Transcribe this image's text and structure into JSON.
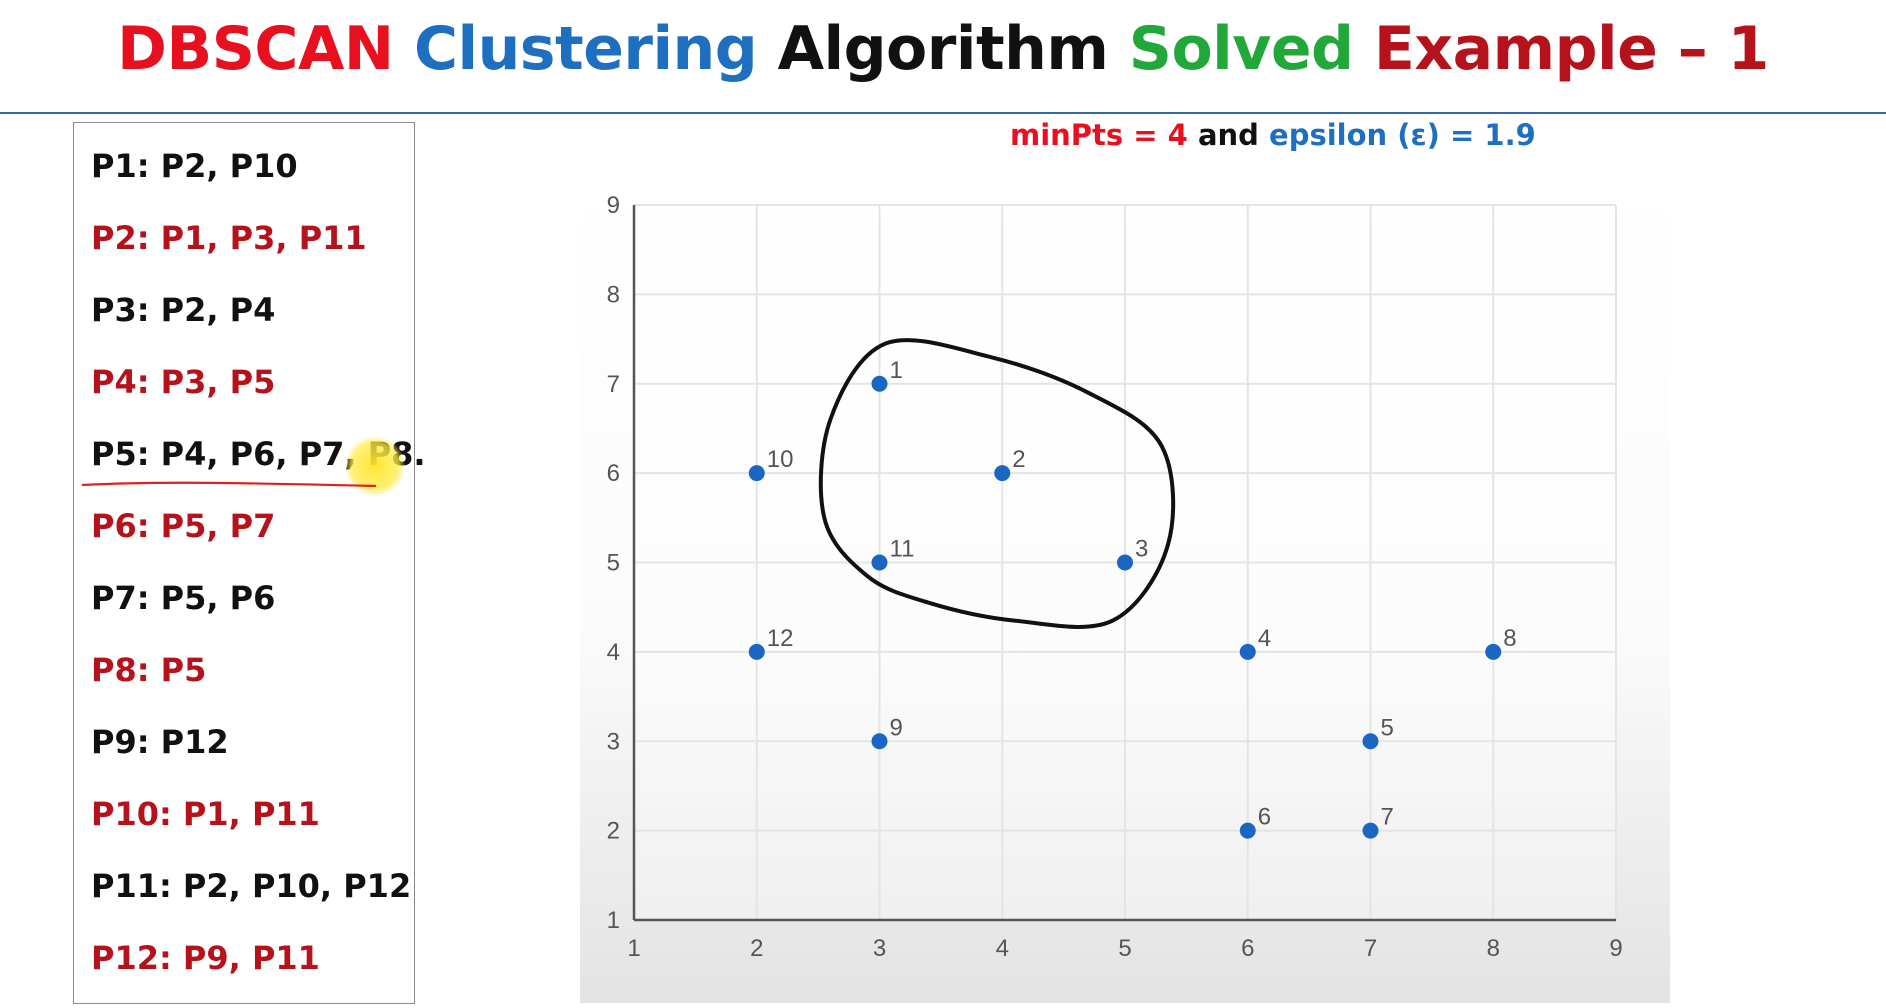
{
  "title": {
    "parts": [
      {
        "text": "DBSCAN ",
        "color": "#e8101e"
      },
      {
        "text": "Clustering ",
        "color": "#1f6fc0"
      },
      {
        "text": "Algorithm ",
        "color": "#111111"
      },
      {
        "text": "Solved ",
        "color": "#22a83a"
      },
      {
        "text": "Example – 1",
        "color": "#b5121b"
      }
    ]
  },
  "params": {
    "minpts_label": "minPts = 4",
    "and_label": " and ",
    "epsilon_label": "epsilon (ε)  = 1.9",
    "colors": {
      "minpts": "#e8101e",
      "and": "#111111",
      "epsilon": "#1f6fc0"
    }
  },
  "neighbors": [
    {
      "text": "P1: P2, P10",
      "color": "#111111"
    },
    {
      "text": "P2: P1, P3, P11",
      "color": "#b5121b"
    },
    {
      "text": "P3: P2, P4",
      "color": "#111111"
    },
    {
      "text": "P4: P3, P5",
      "color": "#b5121b"
    },
    {
      "text": "P5: P4, P6, P7, P8.",
      "color": "#111111"
    },
    {
      "text": "P6: P5, P7",
      "color": "#b5121b"
    },
    {
      "text": "P7: P5, P6",
      "color": "#111111"
    },
    {
      "text": "P8: P5",
      "color": "#b5121b"
    },
    {
      "text": "P9: P12",
      "color": "#111111"
    },
    {
      "text": "P10: P1, P11",
      "color": "#b5121b"
    },
    {
      "text": "P11: P2, P10, P12",
      "color": "#111111"
    },
    {
      "text": "P12: P9, P11",
      "color": "#b5121b"
    }
  ],
  "chart_data": {
    "type": "scatter",
    "title": "",
    "xlabel": "",
    "ylabel": "",
    "xlim": [
      1,
      9
    ],
    "ylim": [
      1,
      9
    ],
    "xticks": [
      1,
      2,
      3,
      4,
      5,
      6,
      7,
      8,
      9
    ],
    "yticks": [
      1,
      2,
      3,
      4,
      5,
      6,
      7,
      8,
      9
    ],
    "grid": true,
    "point_color": "#1a66c2",
    "points": [
      {
        "label": "1",
        "x": 3,
        "y": 7
      },
      {
        "label": "2",
        "x": 4,
        "y": 6
      },
      {
        "label": "3",
        "x": 5,
        "y": 5
      },
      {
        "label": "4",
        "x": 6,
        "y": 4
      },
      {
        "label": "5",
        "x": 7,
        "y": 3
      },
      {
        "label": "6",
        "x": 6,
        "y": 2
      },
      {
        "label": "7",
        "x": 7,
        "y": 2
      },
      {
        "label": "8",
        "x": 8,
        "y": 4
      },
      {
        "label": "9",
        "x": 3,
        "y": 3
      },
      {
        "label": "10",
        "x": 2,
        "y": 6
      },
      {
        "label": "11",
        "x": 3,
        "y": 5
      },
      {
        "label": "12",
        "x": 2,
        "y": 4
      }
    ],
    "annotation": {
      "type": "hand-drawn-loop",
      "color": "#111111",
      "outline": [
        [
          3.05,
          7.45
        ],
        [
          3.9,
          7.3
        ],
        [
          4.7,
          6.9
        ],
        [
          5.3,
          6.3
        ],
        [
          5.35,
          5.2
        ],
        [
          4.9,
          4.35
        ],
        [
          4.1,
          4.35
        ],
        [
          3.4,
          4.55
        ],
        [
          2.9,
          4.85
        ],
        [
          2.55,
          5.5
        ],
        [
          2.6,
          6.6
        ]
      ]
    }
  }
}
